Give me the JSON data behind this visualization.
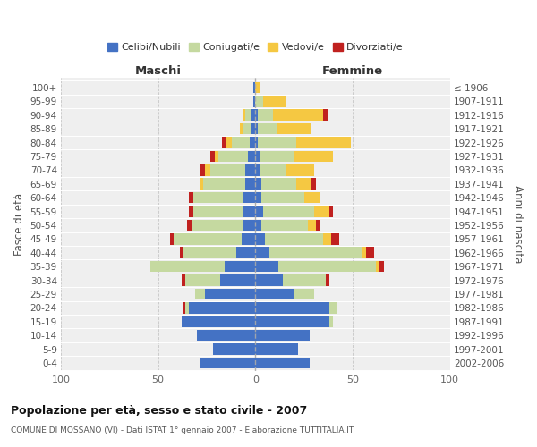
{
  "age_groups": [
    "0-4",
    "5-9",
    "10-14",
    "15-19",
    "20-24",
    "25-29",
    "30-34",
    "35-39",
    "40-44",
    "45-49",
    "50-54",
    "55-59",
    "60-64",
    "65-69",
    "70-74",
    "75-79",
    "80-84",
    "85-89",
    "90-94",
    "95-99",
    "100+"
  ],
  "birth_years": [
    "2002-2006",
    "1997-2001",
    "1992-1996",
    "1987-1991",
    "1982-1986",
    "1977-1981",
    "1972-1976",
    "1967-1971",
    "1962-1966",
    "1957-1961",
    "1952-1956",
    "1947-1951",
    "1942-1946",
    "1937-1941",
    "1932-1936",
    "1927-1931",
    "1922-1926",
    "1917-1921",
    "1912-1916",
    "1907-1911",
    "≤ 1906"
  ],
  "male_celibe": [
    28,
    22,
    30,
    38,
    34,
    26,
    18,
    16,
    10,
    7,
    6,
    6,
    6,
    5,
    5,
    4,
    3,
    2,
    2,
    1,
    1
  ],
  "male_coniugato": [
    0,
    0,
    0,
    0,
    2,
    5,
    18,
    38,
    27,
    35,
    27,
    26,
    26,
    22,
    18,
    15,
    9,
    4,
    3,
    0,
    0
  ],
  "male_vedovo": [
    0,
    0,
    0,
    0,
    0,
    0,
    0,
    0,
    0,
    0,
    0,
    0,
    0,
    1,
    3,
    2,
    3,
    2,
    1,
    0,
    0
  ],
  "male_divorziato": [
    0,
    0,
    0,
    0,
    1,
    0,
    2,
    0,
    2,
    2,
    2,
    2,
    2,
    0,
    2,
    2,
    2,
    0,
    0,
    0,
    0
  ],
  "fem_nubile": [
    28,
    22,
    28,
    38,
    38,
    20,
    14,
    12,
    7,
    5,
    3,
    4,
    3,
    3,
    2,
    2,
    1,
    1,
    1,
    0,
    0
  ],
  "fem_coniugata": [
    0,
    0,
    0,
    2,
    4,
    10,
    22,
    50,
    48,
    30,
    24,
    26,
    22,
    18,
    14,
    18,
    20,
    10,
    8,
    4,
    0
  ],
  "fem_vedova": [
    0,
    0,
    0,
    0,
    0,
    0,
    0,
    2,
    2,
    4,
    4,
    8,
    8,
    8,
    14,
    20,
    28,
    18,
    26,
    12,
    2
  ],
  "fem_divorziata": [
    0,
    0,
    0,
    0,
    0,
    0,
    2,
    2,
    4,
    4,
    2,
    2,
    0,
    2,
    0,
    0,
    0,
    0,
    2,
    0,
    0
  ],
  "colors": {
    "celibe": "#4472c4",
    "coniugato": "#c5d9a0",
    "vedovo": "#f5c842",
    "divorziato": "#c0211f"
  },
  "title": "Popolazione per età, sesso e stato civile - 2007",
  "subtitle": "COMUNE DI MOSSANO (VI) - Dati ISTAT 1° gennaio 2007 - Elaborazione TUTTITALIA.IT",
  "xlabel_left": "Maschi",
  "xlabel_right": "Femmine",
  "ylabel_left": "Fasce di età",
  "ylabel_right": "Anni di nascita",
  "xlim": 100,
  "legend_labels": [
    "Celibi/Nubili",
    "Coniugati/e",
    "Vedovi/e",
    "Divorziati/e"
  ]
}
